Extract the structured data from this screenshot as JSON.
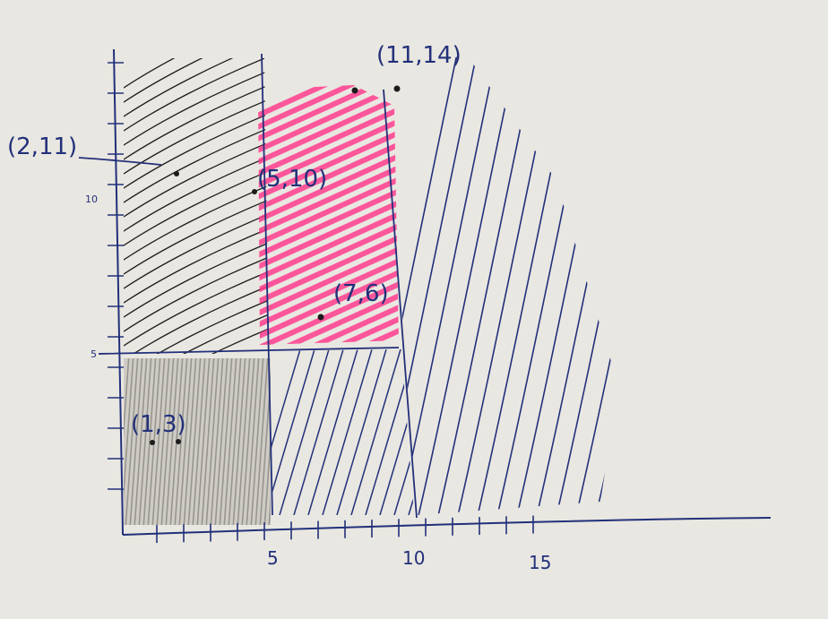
{
  "colors": {
    "paper": "#e9e7e1",
    "ink_blue": "#22307a",
    "ink_black": "#1c1c1c",
    "pencil_gray": "#8a8882",
    "highlighter_pink": "#ff3d8e"
  },
  "axes": {
    "x_ticks": [
      {
        "value": 5,
        "label": "5"
      },
      {
        "value": 10,
        "label": "10"
      },
      {
        "value": 15,
        "label": "15"
      }
    ],
    "y_ticks": [
      {
        "value": 5,
        "label": "5"
      },
      {
        "value": 10,
        "label": "10"
      }
    ]
  },
  "points": [
    {
      "x": 1,
      "y": 3,
      "label": "(1,3)"
    },
    {
      "x": 2,
      "y": 11,
      "label": "(2,11)"
    },
    {
      "x": 5,
      "y": 10,
      "label": "(5,10)"
    },
    {
      "x": 7,
      "y": 6,
      "label": "(7,6)"
    },
    {
      "x": 11,
      "y": 14,
      "label": "(11,14)"
    }
  ]
}
